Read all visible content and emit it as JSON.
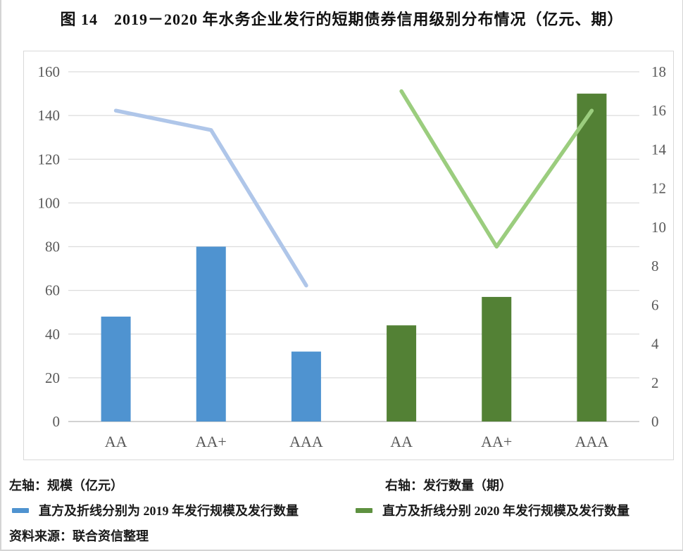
{
  "figure": {
    "title": "图 14　2019－2020 年水务企业发行的短期债券信用级别分布情况（亿元、期）"
  },
  "chart_data": {
    "type": "bar+line",
    "categories": [
      "AA",
      "AA+",
      "AAA",
      "AA",
      "AA+",
      "AAA"
    ],
    "series": [
      {
        "name": "2019年发行规模（直方，左轴，亿元）",
        "kind": "bar",
        "axis": "left",
        "color": "#4F93D0",
        "values": [
          48,
          80,
          32,
          null,
          null,
          null
        ]
      },
      {
        "name": "2020年发行规模（直方，左轴，亿元）",
        "kind": "bar",
        "axis": "left",
        "color": "#538135",
        "values": [
          null,
          null,
          null,
          44,
          57,
          150
        ]
      },
      {
        "name": "2019年发行数量（折线，右轴，期）",
        "kind": "line",
        "axis": "right",
        "color": "#AFC6E9",
        "values": [
          16,
          15,
          7,
          null,
          null,
          null
        ]
      },
      {
        "name": "2020年发行数量（折线，右轴，期）",
        "kind": "line",
        "axis": "right",
        "color": "#9BCD7E",
        "values": [
          null,
          null,
          null,
          17,
          9,
          16
        ]
      }
    ],
    "left_axis": {
      "label": "规模（亿元）",
      "min": 0,
      "max": 160,
      "ticks": [
        0,
        20,
        40,
        60,
        80,
        100,
        120,
        140,
        160
      ]
    },
    "right_axis": {
      "label": "发行数量（期）",
      "min": 0,
      "max": 18,
      "ticks": [
        0,
        2,
        4,
        6,
        8,
        10,
        12,
        14,
        16,
        18
      ]
    },
    "grid": true,
    "legend_position": "bottom"
  },
  "notes": {
    "left_axis_note": "左轴：规模（亿元）",
    "right_axis_note": "右轴：发行数量（期）"
  },
  "legend": {
    "series_2019": "直方及折线分别为 2019 年发行规模及发行数量",
    "series_2020": "直方及折线分别 2020 年发行规模及发行数量"
  },
  "source": "资料来源：联合资信整理",
  "colors": {
    "bar_2019": "#4F93D0",
    "line_2019": "#AFC6E9",
    "bar_2020": "#538135",
    "line_2020": "#9BCD7E",
    "legend_dash_2019": "#4F93D0",
    "legend_dash_2020": "#5E9140",
    "gridline": "#DCDCDC",
    "axis_line": "#D2D2D2",
    "tick_text": "#595959"
  }
}
